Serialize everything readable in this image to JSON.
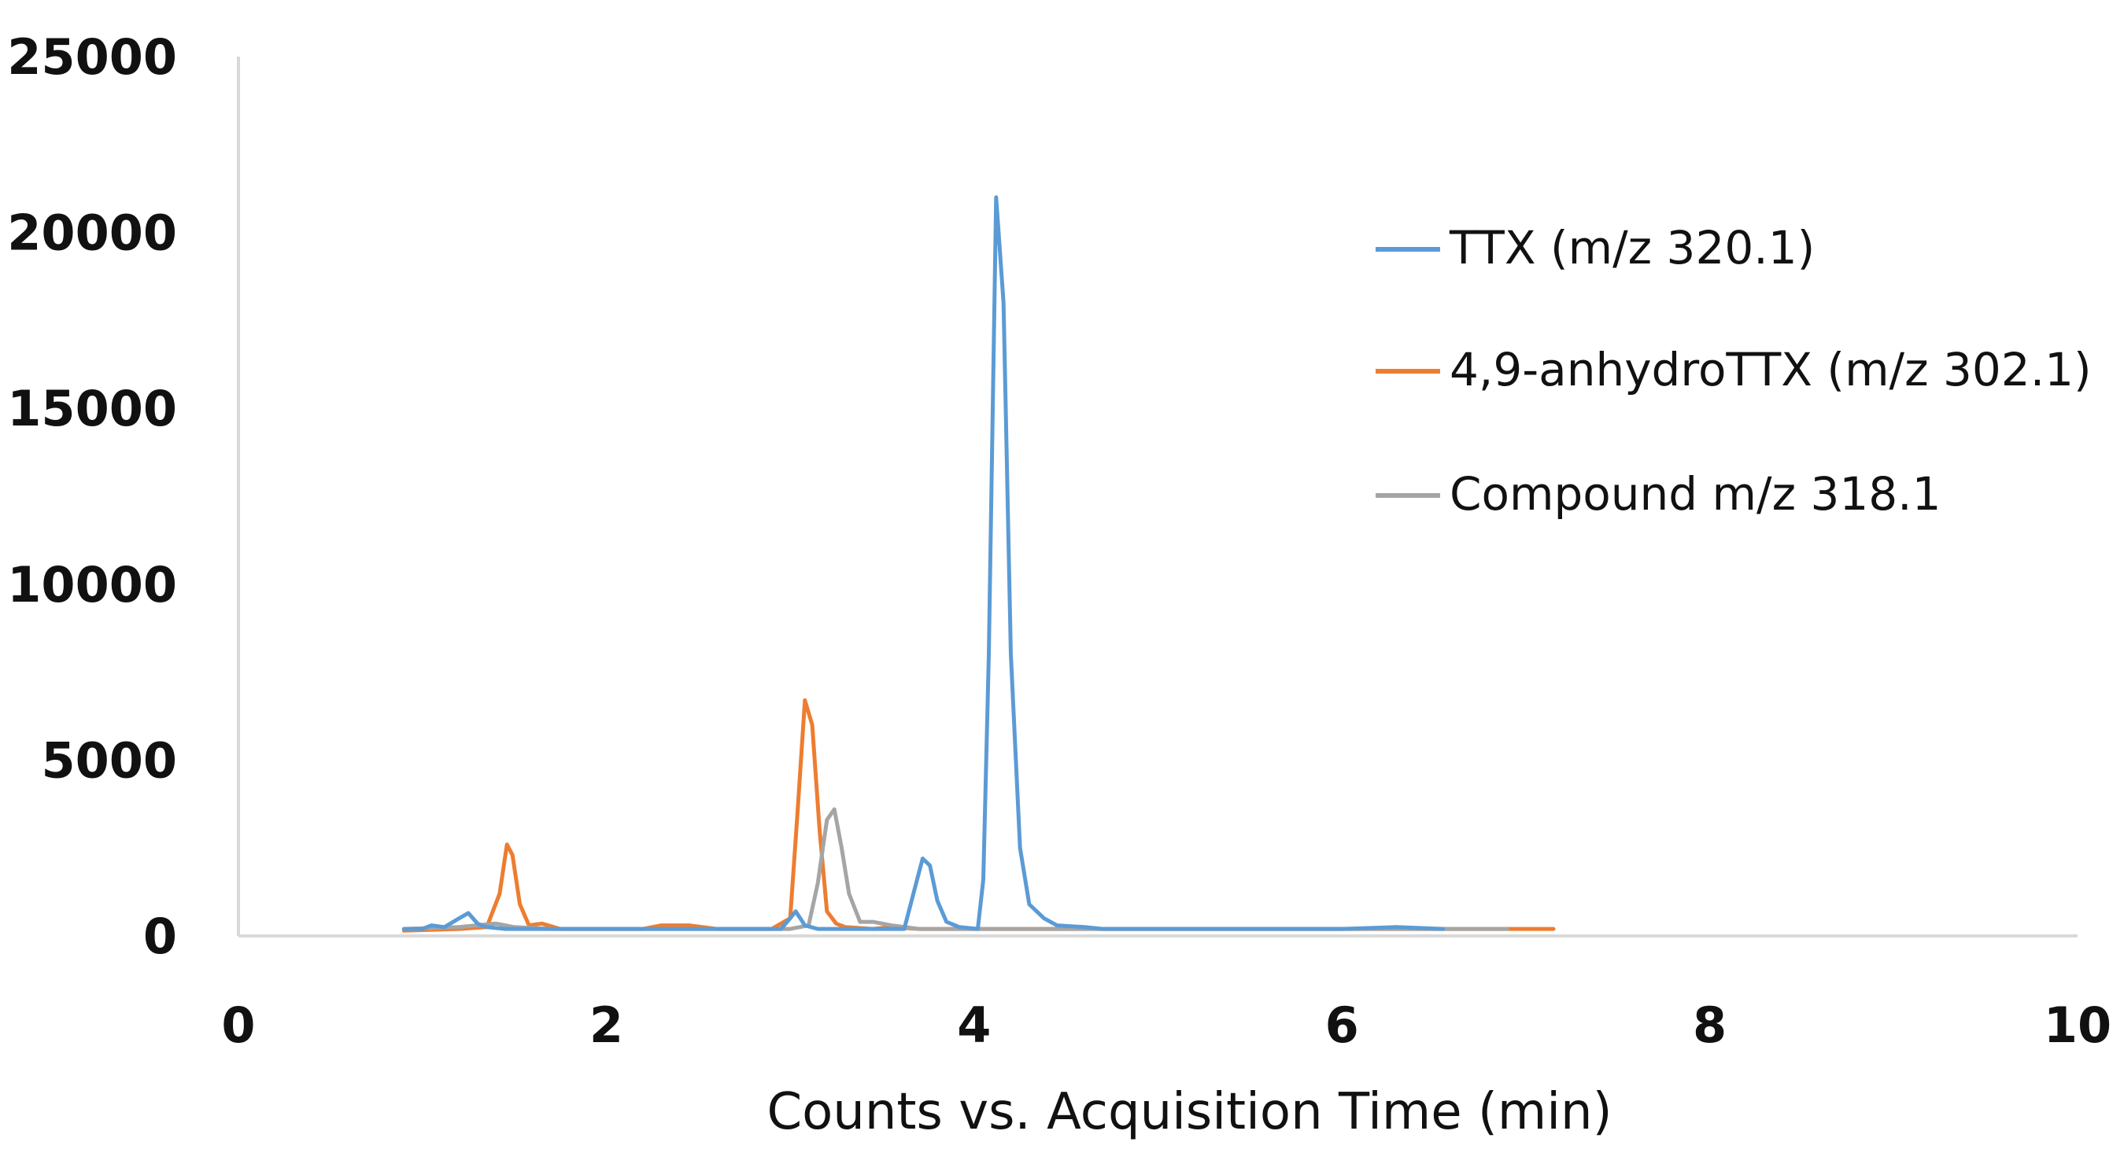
{
  "chart_data": {
    "type": "line",
    "title": "",
    "xlabel": "Counts vs. Acquisition Time (min)",
    "ylabel": "",
    "xlim": [
      0,
      10
    ],
    "ylim": [
      0,
      25000
    ],
    "x_ticks": [
      "0",
      "2",
      "4",
      "6",
      "8",
      "10"
    ],
    "y_ticks": [
      "0",
      "5000",
      "10000",
      "15000",
      "20000",
      "25000"
    ],
    "grid": false,
    "legend_position": "right",
    "series": [
      {
        "name": "TTX (m/z 320.1)",
        "color": "#5b9bd5",
        "x": [
          0.9,
          1.0,
          1.05,
          1.12,
          1.2,
          1.25,
          1.3,
          1.35,
          1.45,
          1.6,
          1.8,
          2.2,
          2.6,
          2.95,
          3.0,
          3.03,
          3.08,
          3.15,
          3.3,
          3.5,
          3.62,
          3.67,
          3.72,
          3.76,
          3.8,
          3.85,
          3.92,
          4.02,
          4.05,
          4.08,
          4.12,
          4.16,
          4.2,
          4.25,
          4.3,
          4.38,
          4.45,
          4.6,
          4.7,
          5.7,
          6.0,
          6.3,
          6.55
        ],
        "y": [
          200,
          200,
          300,
          250,
          500,
          650,
          350,
          250,
          200,
          200,
          200,
          200,
          200,
          200,
          500,
          700,
          300,
          200,
          200,
          200,
          200,
          1200,
          2200,
          2000,
          1000,
          400,
          250,
          200,
          1600,
          8000,
          21000,
          18000,
          8000,
          2500,
          900,
          500,
          300,
          250,
          200,
          200,
          200,
          250,
          200
        ]
      },
      {
        "name": "4,9-anhydroTTX (m/z 302.1)",
        "color": "#ed7d31",
        "x": [
          0.9,
          1.2,
          1.35,
          1.42,
          1.46,
          1.49,
          1.53,
          1.58,
          1.65,
          1.75,
          2.2,
          2.3,
          2.45,
          2.6,
          2.9,
          3.0,
          3.04,
          3.08,
          3.12,
          3.16,
          3.2,
          3.25,
          3.3,
          3.45,
          3.55,
          3.7,
          4.05,
          5.8,
          6.2,
          6.8,
          7.15
        ],
        "y": [
          150,
          200,
          250,
          1200,
          2600,
          2300,
          900,
          300,
          350,
          200,
          200,
          300,
          300,
          200,
          200,
          500,
          3500,
          6700,
          6000,
          3000,
          700,
          350,
          250,
          200,
          250,
          200,
          200,
          200,
          200,
          200,
          200
        ]
      },
      {
        "name": "Compound m/z 318.1",
        "color": "#a5a5a5",
        "x": [
          0.9,
          1.2,
          1.4,
          1.5,
          1.7,
          3.0,
          3.1,
          3.15,
          3.2,
          3.24,
          3.28,
          3.32,
          3.38,
          3.45,
          3.55,
          3.7,
          6.9
        ],
        "y": [
          200,
          250,
          350,
          250,
          200,
          200,
          300,
          1500,
          3300,
          3600,
          2500,
          1200,
          400,
          400,
          300,
          200,
          200
        ]
      }
    ]
  }
}
